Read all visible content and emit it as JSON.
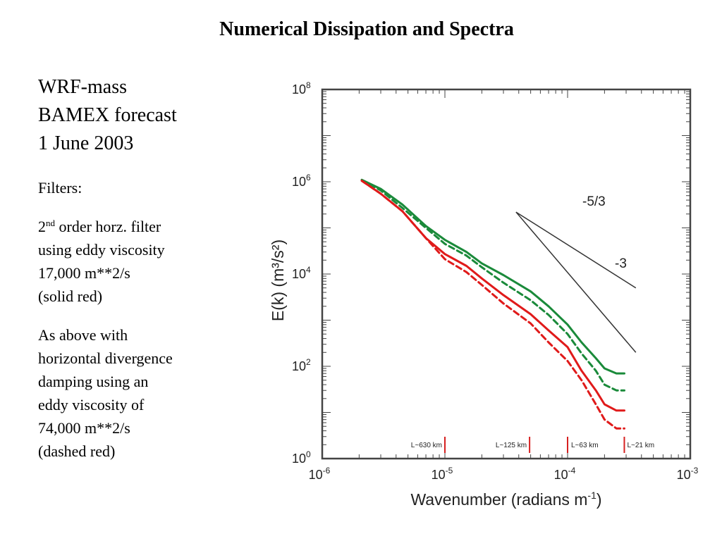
{
  "page": {
    "title": "Numerical Dissipation and Spectra",
    "left_lines_big": [
      "WRF-mass",
      "BAMEX forecast",
      "1 June 2003"
    ],
    "filters_label": "Filters:",
    "filter1_prefix": "2",
    "filter1_sup": "nd",
    "filter1_rest": " order horz. filter",
    "filter1_lines": [
      "using eddy viscosity",
      "17,000 m**2/s",
      "(solid red)"
    ],
    "filter2_lines": [
      "As above with",
      "horizontal divergence",
      "damping using an",
      "eddy viscosity of",
      "74,000 m**2/s",
      "(dashed red)"
    ]
  },
  "chart_data": {
    "type": "line",
    "xscale": "log",
    "yscale": "log",
    "xlim": [
      1e-06,
      0.001
    ],
    "ylim": [
      1,
      100000000
    ],
    "xlabel": "Wavenumber  (radians m",
    "xlabel_sup": "-1",
    "xlabel_end": ")",
    "ylabel": "E(k) (m³/s²)",
    "x_ticks": [
      {
        "base": "10",
        "exp": "-6",
        "value": 1e-06
      },
      {
        "base": "10",
        "exp": "-5",
        "value": 1e-05
      },
      {
        "base": "10",
        "exp": "-4",
        "value": 0.0001
      },
      {
        "base": "10",
        "exp": "-3",
        "value": 0.001
      }
    ],
    "y_ticks": [
      {
        "base": "10",
        "exp": "0",
        "value": 1
      },
      {
        "base": "10",
        "exp": "2",
        "value": 100
      },
      {
        "base": "10",
        "exp": "4",
        "value": 10000
      },
      {
        "base": "10",
        "exp": "6",
        "value": 1000000
      },
      {
        "base": "10",
        "exp": "8",
        "value": 100000000
      }
    ],
    "series": [
      {
        "color": "#1a8a3a",
        "dash": false,
        "x": [
          2.1e-06,
          3e-06,
          4.5e-06,
          7e-06,
          1e-05,
          1.5e-05,
          2e-05,
          3e-05,
          5e-05,
          7e-05,
          0.0001,
          0.00013,
          0.00017,
          0.0002,
          0.00025,
          0.00029
        ],
        "y": [
          1100000,
          700000,
          320000,
          110000,
          55000,
          30000,
          17000,
          9500,
          4200,
          2000,
          800,
          330,
          150,
          90,
          70,
          70
        ]
      },
      {
        "color": "#1a8a3a",
        "dash": true,
        "x": [
          2.1e-06,
          3e-06,
          4.5e-06,
          7e-06,
          1e-05,
          1.5e-05,
          2e-05,
          3e-05,
          5e-05,
          7e-05,
          0.0001,
          0.00013,
          0.00017,
          0.0002,
          0.00025,
          0.00029
        ],
        "y": [
          1100000,
          650000,
          270000,
          100000,
          45000,
          25000,
          14000,
          6500,
          2700,
          1300,
          500,
          190,
          80,
          40,
          30,
          30
        ]
      },
      {
        "color": "#e01a1a",
        "dash": false,
        "x": [
          2.1e-06,
          3e-06,
          4.5e-06,
          7e-06,
          1e-05,
          1.5e-05,
          2e-05,
          3e-05,
          5e-05,
          7e-05,
          0.0001,
          0.00013,
          0.00017,
          0.0002,
          0.00025,
          0.00029
        ],
        "y": [
          1050000,
          550000,
          230000,
          60000,
          27000,
          15000,
          8000,
          3500,
          1350,
          600,
          260,
          80,
          30,
          15,
          11,
          11
        ]
      },
      {
        "color": "#e01a1a",
        "dash": true,
        "x": [
          2.1e-06,
          3e-06,
          4.5e-06,
          7e-06,
          1e-05,
          1.5e-05,
          2e-05,
          3e-05,
          5e-05,
          7e-05,
          0.0001,
          0.00013,
          0.00017,
          0.0002,
          0.00025,
          0.00029
        ],
        "y": [
          1050000,
          550000,
          230000,
          60000,
          21000,
          11000,
          5800,
          2300,
          850,
          330,
          130,
          50,
          15,
          7,
          4.5,
          4.5
        ]
      }
    ],
    "reference_lines": [
      {
        "label": "-5/3",
        "x": [
          3.8e-05,
          0.00036
        ],
        "y": [
          220000,
          5000
        ]
      },
      {
        "label": "-3",
        "x": [
          3.8e-05,
          0.00036
        ],
        "y": [
          220000,
          200
        ]
      }
    ],
    "scale_markers": [
      {
        "label": "L~630 km",
        "x": 1e-05
      },
      {
        "label": "L~125 km",
        "x": 4.9e-05
      },
      {
        "label": "L~63 km",
        "x": 0.0001
      },
      {
        "label": "L~21 km",
        "x": 0.00029
      }
    ],
    "marker_color": "#d62020",
    "axis_color": "#444444"
  }
}
